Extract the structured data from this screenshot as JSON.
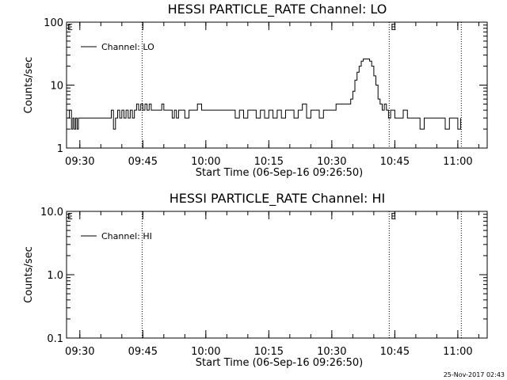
{
  "footer_timestamp": "25-Nov-2017 02:43",
  "chart_data": [
    {
      "type": "line",
      "title": "HESSI PARTICLE_RATE Channel: LO",
      "xlabel": "Start Time (06-Sep-16 09:26:50)",
      "ylabel": "Counts/sec",
      "yscale": "log",
      "ylim": [
        1,
        100
      ],
      "y_ticks": [
        "1",
        "10",
        "100"
      ],
      "xlim": [
        "09:26:50",
        "11:07:00"
      ],
      "x_ticks": [
        "09:30",
        "09:45",
        "10:00",
        "10:15",
        "10:30",
        "10:45",
        "11:00"
      ],
      "legend": {
        "label": "Channel: LO",
        "position": "top-left"
      },
      "markers": [
        {
          "time": "09:44:50",
          "label": ""
        },
        {
          "time": "10:43:40",
          "label": "E"
        },
        {
          "time": "11:00:50",
          "label": ""
        }
      ],
      "edge_labels": [
        {
          "label": "E",
          "position": "left"
        }
      ],
      "series": [
        {
          "x": [
            "09:27:10",
            "09:27:30",
            "09:28:00",
            "09:28:20",
            "09:28:40",
            "09:29:00",
            "09:29:20",
            "09:29:40",
            "09:30:00",
            "09:31:00",
            "09:32:00",
            "09:33:00",
            "09:34:00",
            "09:35:00",
            "09:36:00",
            "09:37:00",
            "09:37:30",
            "09:38:00",
            "09:38:30",
            "09:39:00",
            "09:39:30",
            "09:40:00",
            "09:40:30",
            "09:41:00",
            "09:41:30",
            "09:42:00",
            "09:42:30",
            "09:43:00",
            "09:43:30",
            "09:44:00",
            "09:44:30",
            "09:45:00",
            "09:45:30",
            "09:46:00",
            "09:46:30",
            "09:47:00",
            "09:47:30",
            "09:48:00",
            "09:48:30",
            "09:49:00",
            "09:49:30",
            "09:50:00",
            "09:51:00",
            "09:52:00",
            "09:52:30",
            "09:53:00",
            "09:53:30",
            "09:54:00",
            "09:55:00",
            "09:56:00",
            "09:57:00",
            "09:58:00",
            "09:59:00",
            "10:00:00",
            "10:01:00",
            "10:02:00",
            "10:03:00",
            "10:04:00",
            "10:05:00",
            "10:06:00",
            "10:07:00",
            "10:08:00",
            "10:09:00",
            "10:10:00",
            "10:11:00",
            "10:12:00",
            "10:13:00",
            "10:14:00",
            "10:15:00",
            "10:16:00",
            "10:17:00",
            "10:18:00",
            "10:19:00",
            "10:20:00",
            "10:21:00",
            "10:22:00",
            "10:23:00",
            "10:24:00",
            "10:25:00",
            "10:26:00",
            "10:27:00",
            "10:28:00",
            "10:29:00",
            "10:30:00",
            "10:31:00",
            "10:32:00",
            "10:33:00",
            "10:34:00",
            "10:34:30",
            "10:35:00",
            "10:35:30",
            "10:36:00",
            "10:36:30",
            "10:37:00",
            "10:37:30",
            "10:38:00",
            "10:38:30",
            "10:39:00",
            "10:39:30",
            "10:40:00",
            "10:40:30",
            "10:41:00",
            "10:41:30",
            "10:42:00",
            "10:42:30",
            "10:43:00",
            "10:43:30",
            "10:44:00",
            "10:45:00",
            "10:46:00",
            "10:47:00",
            "10:48:00",
            "10:49:00",
            "10:50:00",
            "10:51:00",
            "10:52:00",
            "10:53:00",
            "10:54:00",
            "10:55:00",
            "10:56:00",
            "10:57:00",
            "10:58:00",
            "10:59:00",
            "11:00:00",
            "11:00:40"
          ],
          "values": [
            3.0,
            4.0,
            2.0,
            3.0,
            2.0,
            3.0,
            2.0,
            3.0,
            3.0,
            3.0,
            3.0,
            3.0,
            3.0,
            3.0,
            3.0,
            3.0,
            4.0,
            2.0,
            3.0,
            4.0,
            3.0,
            4.0,
            3.0,
            4.0,
            3.0,
            4.0,
            3.0,
            4.0,
            5.0,
            4.0,
            5.0,
            4.0,
            5.0,
            4.0,
            5.0,
            4.0,
            4.0,
            4.0,
            4.0,
            4.0,
            5.0,
            4.0,
            4.0,
            3.0,
            4.0,
            3.0,
            4.0,
            4.0,
            3.0,
            4.0,
            4.0,
            5.0,
            4.0,
            4.0,
            4.0,
            4.0,
            4.0,
            4.0,
            4.0,
            4.0,
            3.0,
            4.0,
            3.0,
            4.0,
            4.0,
            3.0,
            4.0,
            3.0,
            4.0,
            3.0,
            4.0,
            3.0,
            4.0,
            4.0,
            3.0,
            4.0,
            5.0,
            3.0,
            4.0,
            4.0,
            3.0,
            4.0,
            4.0,
            4.0,
            5.0,
            5.0,
            5.0,
            5.0,
            6.0,
            8.0,
            12.0,
            16.0,
            20.0,
            24.0,
            26.0,
            26.0,
            26.0,
            24.0,
            20.0,
            14.0,
            10.0,
            6.0,
            5.0,
            4.0,
            5.0,
            4.0,
            3.0,
            4.0,
            3.0,
            3.0,
            4.0,
            3.0,
            3.0,
            3.0,
            2.0,
            3.0,
            3.0,
            3.0,
            3.0,
            3.0,
            2.0,
            3.0,
            3.0,
            2.0,
            3.0
          ]
        }
      ]
    },
    {
      "type": "line",
      "title": "HESSI PARTICLE_RATE Channel: HI",
      "xlabel": "Start Time (06-Sep-16 09:26:50)",
      "ylabel": "Counts/sec",
      "yscale": "log",
      "ylim": [
        0.1,
        10
      ],
      "y_ticks": [
        "0.1",
        "1.0",
        "10.0"
      ],
      "xlim": [
        "09:26:50",
        "11:07:00"
      ],
      "x_ticks": [
        "09:30",
        "09:45",
        "10:00",
        "10:15",
        "10:30",
        "10:45",
        "11:00"
      ],
      "legend": {
        "label": "Channel: HI",
        "position": "top-left"
      },
      "markers": [
        {
          "time": "09:44:50",
          "label": ""
        },
        {
          "time": "10:43:40",
          "label": "E"
        },
        {
          "time": "11:00:50",
          "label": ""
        }
      ],
      "edge_labels": [
        {
          "label": "E",
          "position": "left"
        }
      ],
      "series": [
        {
          "x": [],
          "values": []
        }
      ]
    }
  ]
}
